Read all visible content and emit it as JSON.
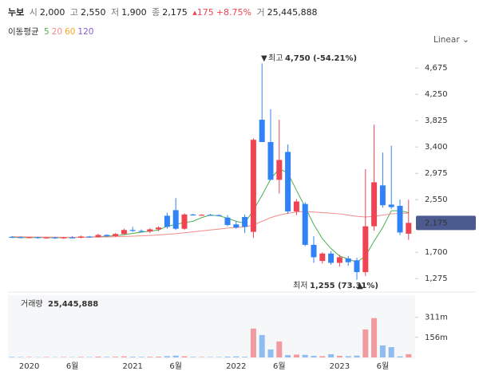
{
  "header": {
    "name": "누보",
    "fields": [
      {
        "label": "시",
        "value": "2,000"
      },
      {
        "label": "고",
        "value": "2,550"
      },
      {
        "label": "저",
        "value": "1,900"
      },
      {
        "label": "종",
        "value": "2,175"
      }
    ],
    "change": "175",
    "change_pct": "+8.75%",
    "volume": {
      "label": "거",
      "value": "25,445,888"
    }
  },
  "controls": {
    "scale": "Linear"
  },
  "chart_data": {
    "type": "candlestick",
    "categories": [
      null,
      null,
      "2020",
      null,
      null,
      null,
      null,
      "6월",
      null,
      null,
      null,
      null,
      null,
      null,
      "2021",
      null,
      null,
      null,
      null,
      "6월",
      null,
      null,
      null,
      null,
      null,
      null,
      "2022",
      null,
      null,
      null,
      null,
      "6월",
      null,
      null,
      null,
      null,
      null,
      null,
      "2023",
      null,
      null,
      null,
      null,
      "6월",
      null,
      null,
      null
    ],
    "open": [
      1950,
      1945,
      1935,
      1945,
      1930,
      1940,
      1925,
      1940,
      1935,
      1955,
      1945,
      1980,
      1960,
      1995,
      2060,
      2045,
      2035,
      2070,
      2290,
      2380,
      2080,
      2310,
      2300,
      2305,
      2300,
      2260,
      2150,
      2270,
      2030,
      3840,
      3480,
      2870,
      3320,
      2360,
      2480,
      1820,
      1560,
      1680,
      1530,
      1600,
      1570,
      1380,
      2120,
      2780,
      2470,
      2450,
      2000
    ],
    "high": [
      1960,
      1955,
      1950,
      1950,
      1945,
      1950,
      1950,
      1960,
      1970,
      1965,
      2000,
      1990,
      2010,
      2080,
      2110,
      2070,
      2090,
      2120,
      2340,
      2575,
      2330,
      2320,
      2315,
      2320,
      2310,
      2300,
      2200,
      2310,
      3540,
      4750,
      4010,
      3840,
      3440,
      2560,
      2510,
      1960,
      1700,
      1720,
      1660,
      1640,
      1610,
      3040,
      3760,
      3310,
      3420,
      2550,
      2550
    ],
    "low": [
      1930,
      1925,
      1925,
      1920,
      1920,
      1915,
      1915,
      1925,
      1925,
      1935,
      1935,
      1950,
      1950,
      1980,
      2030,
      2020,
      2010,
      2040,
      2080,
      2060,
      2060,
      2295,
      2290,
      2295,
      2285,
      2120,
      2080,
      2010,
      1930,
      3480,
      2870,
      2650,
      2320,
      2300,
      1800,
      1530,
      1520,
      1500,
      1470,
      1480,
      1255,
      1320,
      2050,
      2420,
      2400,
      1980,
      1900
    ],
    "close": [
      1940,
      1935,
      1945,
      1930,
      1940,
      1925,
      1940,
      1935,
      1955,
      1945,
      1980,
      1960,
      1995,
      2060,
      2045,
      2035,
      2070,
      2100,
      2110,
      2080,
      2310,
      2300,
      2305,
      2300,
      2295,
      2140,
      2100,
      2110,
      3516,
      3480,
      2870,
      3190,
      2360,
      2520,
      1820,
      1620,
      1680,
      1530,
      1620,
      1540,
      1380,
      2120,
      2830,
      2460,
      2430,
      2020,
      2175
    ],
    "up_color": "#f04452",
    "down_color": "#3182f6",
    "moving_averages": {
      "title": "이동평균",
      "series": [
        {
          "name": "5",
          "color": "#4cb050",
          "values": [
            1940,
            1938,
            1940,
            1937,
            1938,
            1935,
            1937,
            1938,
            1942,
            1945,
            1952,
            1960,
            1968,
            1985,
            2005,
            2025,
            2040,
            2060,
            2120,
            2150,
            2180,
            2200,
            2260,
            2300,
            2290,
            2250,
            2200,
            2170,
            2380,
            2620,
            2880,
            3050,
            2980,
            2700,
            2430,
            2150,
            1920,
            1760,
            1640,
            1590,
            1540,
            1640,
            1880,
            2100,
            2370,
            2370,
            2340
          ]
        },
        {
          "name": "20",
          "color": "#f08c8c",
          "values": [
            1950,
            1950,
            1948,
            1946,
            1945,
            1944,
            1943,
            1942,
            1943,
            1944,
            1946,
            1948,
            1950,
            1955,
            1960,
            1965,
            1972,
            1980,
            1990,
            2000,
            2015,
            2030,
            2045,
            2060,
            2075,
            2090,
            2100,
            2110,
            2140,
            2200,
            2260,
            2300,
            2330,
            2350,
            2360,
            2350,
            2340,
            2330,
            2320,
            2300,
            2280,
            2270,
            2280,
            2300,
            2320,
            2330,
            2330
          ]
        },
        {
          "name": "60",
          "color": "#f5a623"
        },
        {
          "name": "120",
          "color": "#8a5cd8"
        }
      ]
    },
    "ylim": [
      1110,
      5000
    ],
    "yticks": [
      {
        "value": 1275,
        "label": "1,275"
      },
      {
        "value": 1700,
        "label": "1,700"
      },
      {
        "value": 2550,
        "label": "2,550"
      },
      {
        "value": 2975,
        "label": "2,975"
      },
      {
        "value": 3400,
        "label": "3,400"
      },
      {
        "value": 3825,
        "label": "3,825"
      },
      {
        "value": 4250,
        "label": "4,250"
      },
      {
        "value": 4675,
        "label": "4,675"
      }
    ],
    "last_price": {
      "value": 2175,
      "label": "2,175"
    },
    "annotations": [
      {
        "label": "최고",
        "text": "4,750 (-54.21%)"
      },
      {
        "label": "최저",
        "text": "1,255 (73.31%)"
      }
    ],
    "volume": {
      "title": "거래량",
      "current": "25,445,888",
      "values": [
        4000000,
        3000000,
        3000000,
        2000000,
        3000000,
        2000000,
        3000000,
        2000000,
        4000000,
        3000000,
        6000000,
        4000000,
        5000000,
        8000000,
        5000000,
        4000000,
        5000000,
        6000000,
        10000000,
        14000000,
        9000000,
        4000000,
        3000000,
        3000000,
        3000000,
        6000000,
        8000000,
        5000000,
        224000000,
        174000000,
        62000000,
        124000000,
        18000000,
        22000000,
        20000000,
        12000000,
        10000000,
        25000000,
        12000000,
        10000000,
        14000000,
        217000000,
        305000000,
        93000000,
        80000000,
        8000000,
        25445888
      ],
      "ylim": [
        0,
        470000000
      ],
      "yticks": [
        {
          "value": 156000000,
          "label": "156m"
        },
        {
          "value": 311000000,
          "label": "311m"
        }
      ]
    }
  }
}
